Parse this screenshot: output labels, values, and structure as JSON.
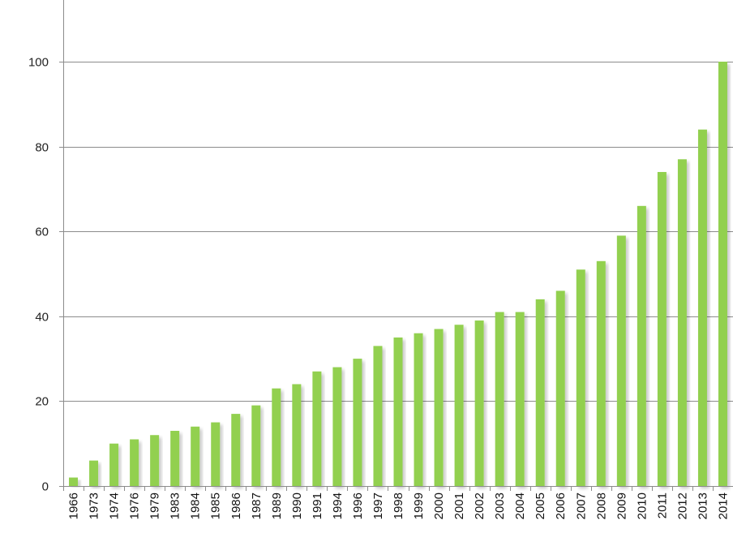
{
  "chart_data": {
    "type": "bar",
    "categories": [
      "1966",
      "1973",
      "1974",
      "1976",
      "1979",
      "1983",
      "1984",
      "1985",
      "1986",
      "1987",
      "1989",
      "1990",
      "1991",
      "1994",
      "1996",
      "1997",
      "1998",
      "1999",
      "2000",
      "2001",
      "2002",
      "2003",
      "2004",
      "2005",
      "2006",
      "2007",
      "2008",
      "2009",
      "2010",
      "2011",
      "2012",
      "2013",
      "2014"
    ],
    "series": [
      {
        "values": [
          2,
          6,
          10,
          11,
          12,
          13,
          14,
          15,
          17,
          19,
          23,
          24,
          27,
          28,
          30,
          33,
          35,
          36,
          37,
          38,
          39,
          41,
          41,
          44,
          46,
          51,
          53,
          59,
          66,
          74,
          77,
          84,
          100
        ],
        "color": "#92d050"
      }
    ],
    "y_ticks": [
      "0",
      "20",
      "40",
      "60",
      "80",
      "100"
    ],
    "ylim": [
      0,
      115
    ],
    "grid": true,
    "legend": "none",
    "x_tick_rotation": "vertical",
    "colors": {
      "bar": "#92d050",
      "bar_shadow": "#b9e38f",
      "gridline": "#8c8c8c"
    }
  }
}
